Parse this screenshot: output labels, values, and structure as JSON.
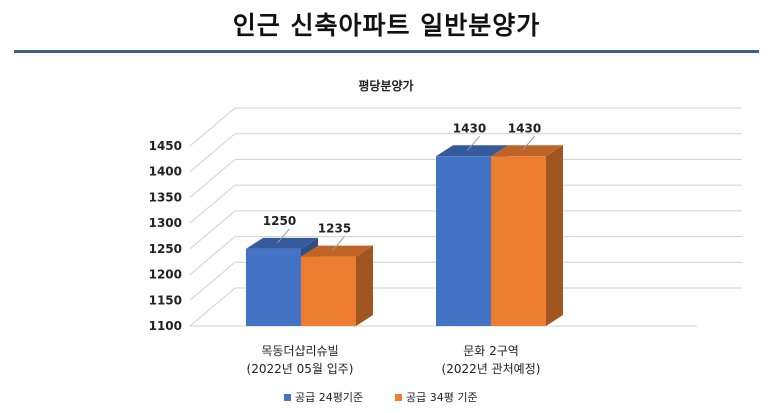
{
  "page": {
    "title": "인근 신축아파트 일반분양가"
  },
  "chart_data": {
    "type": "bar",
    "title": "평당분양가",
    "categories": [
      [
        "목동더샵리슈빌",
        "(2022년 05월 입주)"
      ],
      [
        "문화 2구역",
        "(2022년 관처예정)"
      ]
    ],
    "series": [
      {
        "name": "공급 24평기준",
        "values": [
          1250,
          1430
        ],
        "color": "#4472c4"
      },
      {
        "name": "공급 34평 기준",
        "values": [
          1235,
          1430
        ],
        "color": "#ed7d31"
      }
    ],
    "ylim": [
      1100,
      1450
    ],
    "yticks": [
      1100,
      1150,
      1200,
      1250,
      1300,
      1350,
      1400,
      1450
    ],
    "grid": true,
    "legend": "bottom"
  }
}
